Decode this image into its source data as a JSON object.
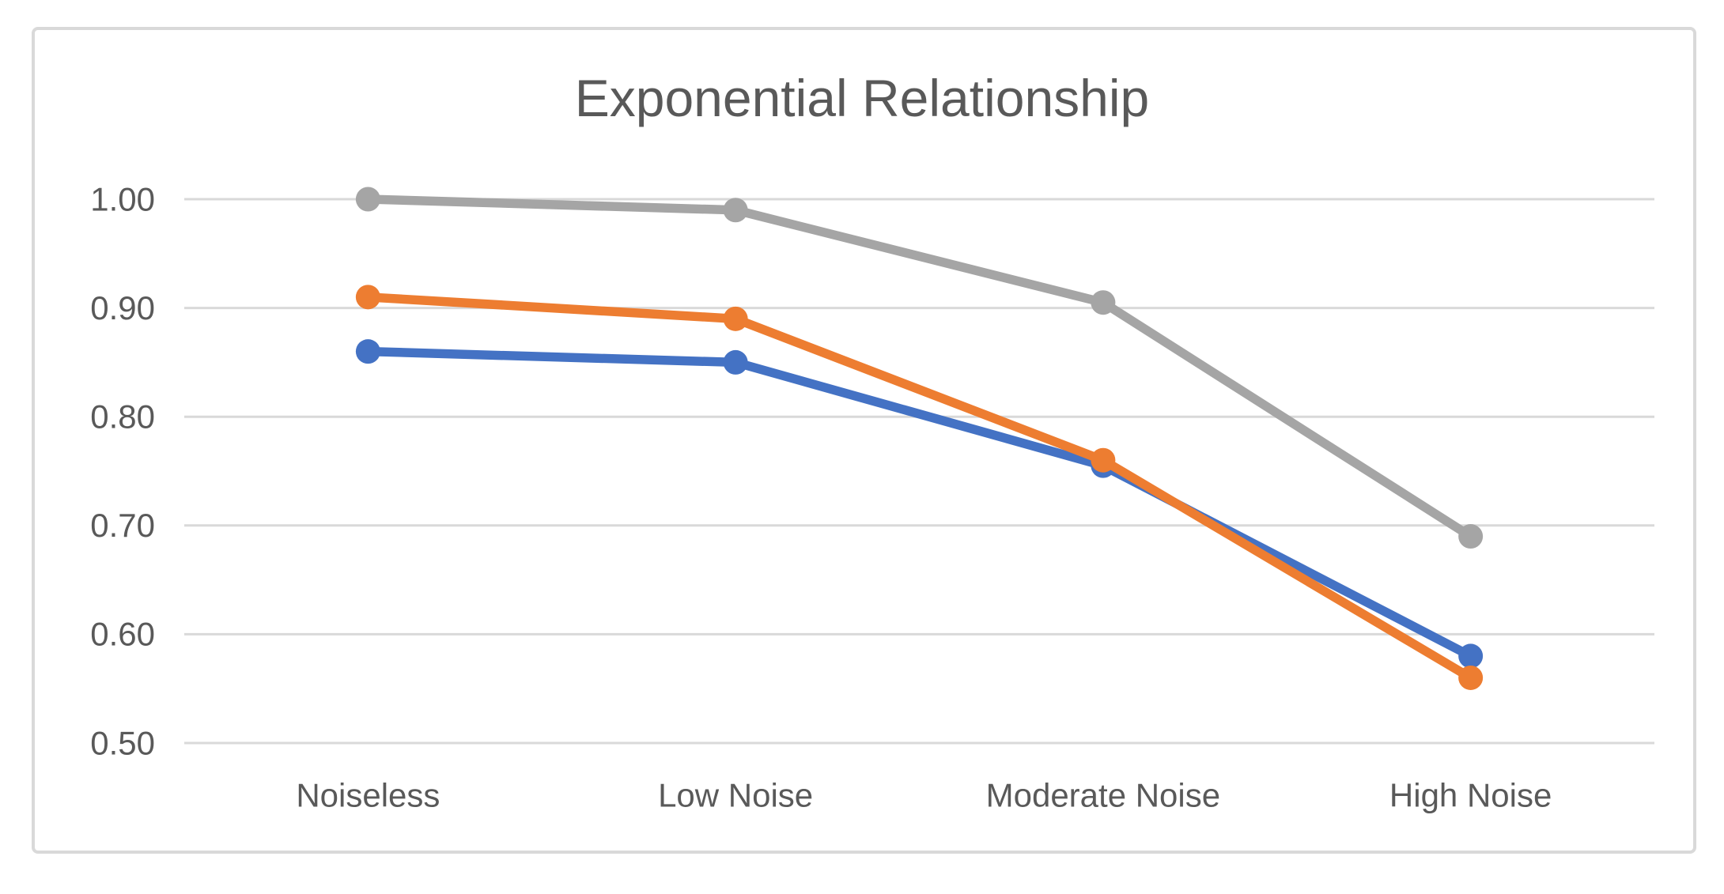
{
  "chart_data": {
    "type": "line",
    "title": "Exponential Relationship",
    "categories": [
      "Noiseless",
      "Low Noise",
      "Moderate Noise",
      "High Noise"
    ],
    "series": [
      {
        "name": "blue-series",
        "color": "#4472C4",
        "values": [
          0.86,
          0.85,
          0.755,
          0.58
        ]
      },
      {
        "name": "orange-series",
        "color": "#ED7D31",
        "values": [
          0.91,
          0.89,
          0.76,
          0.56
        ]
      },
      {
        "name": "gray-series",
        "color": "#A5A5A5",
        "values": [
          1.0,
          0.99,
          0.905,
          0.69
        ]
      }
    ],
    "ylim": [
      0.5,
      1.0
    ],
    "ytick_labels": [
      "1.00",
      "0.90",
      "0.80",
      "0.70",
      "0.60",
      "0.50"
    ],
    "xlabel": "",
    "ylabel": "",
    "grid": true,
    "legend": "none",
    "marker": "circle"
  },
  "style": {
    "title_color": "#595959",
    "axis_label_color": "#595959",
    "gridline_color": "#d9d9d9",
    "frame_border_color": "#d9d9d9",
    "background": "#ffffff"
  }
}
